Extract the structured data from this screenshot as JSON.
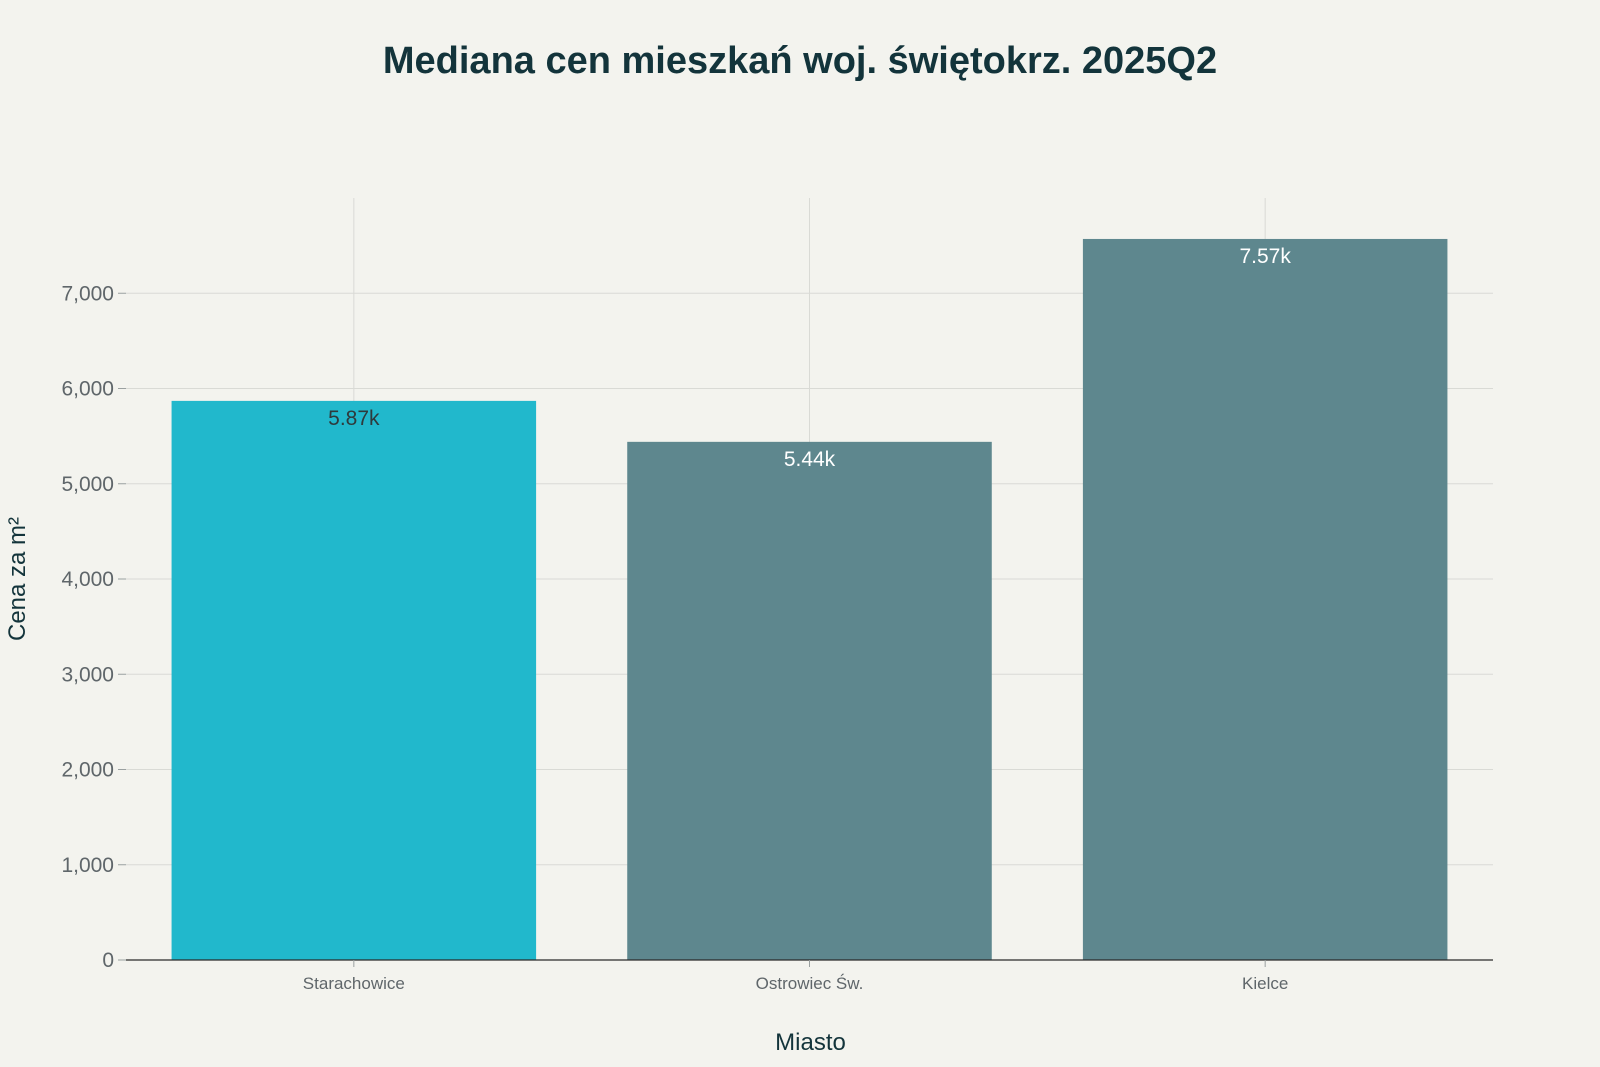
{
  "chart_data": {
    "type": "bar",
    "title": "Mediana cen mieszkań woj. świętokrz. 2025Q2",
    "xlabel": "Miasto",
    "ylabel": "Cena za m²",
    "categories": [
      "Starachowice",
      "Ostrowiec Św.",
      "Kielce"
    ],
    "values": [
      5870,
      5440,
      7570
    ],
    "data_labels": [
      "5.87k",
      "5.44k",
      "7.57k"
    ],
    "bar_colors": [
      "#21b8cc",
      "#5e878e",
      "#5e878e"
    ],
    "data_label_colors": [
      "#2f3a3c",
      "#ffffff",
      "#ffffff"
    ],
    "ylim": [
      0,
      8000
    ],
    "yticks": [
      0,
      1000,
      2000,
      3000,
      4000,
      5000,
      6000,
      7000
    ],
    "ytick_labels": [
      "0",
      "1,000",
      "2,000",
      "3,000",
      "4,000",
      "5,000",
      "6,000",
      "7,000"
    ],
    "grid": true
  }
}
